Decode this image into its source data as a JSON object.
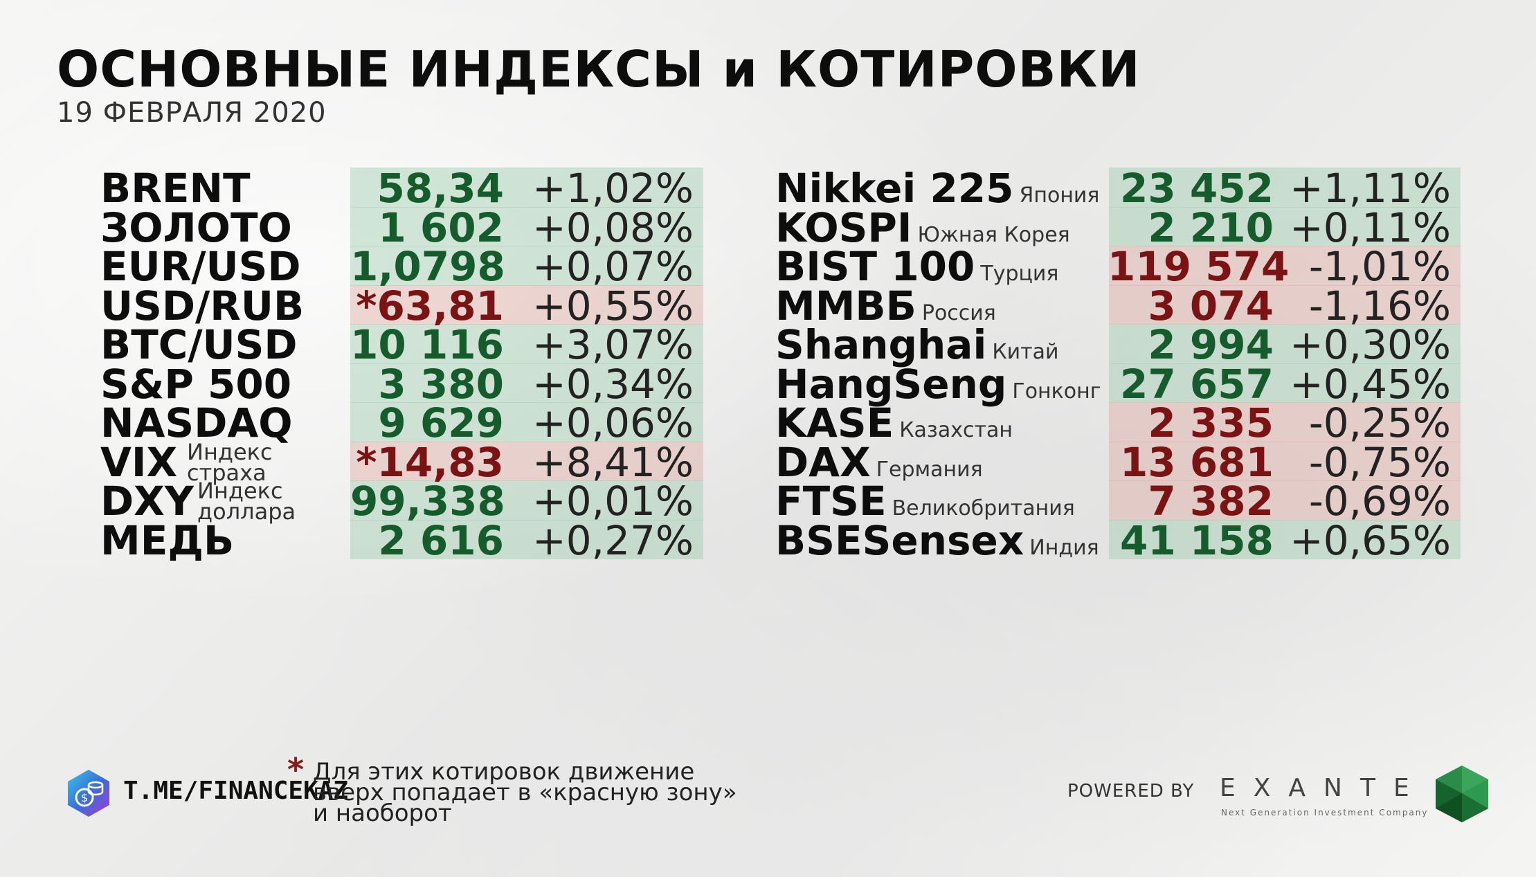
{
  "header": {
    "title": "ОСНОВНЫЕ ИНДЕКСЫ и КОТИРОВКИ",
    "date": "19 ФЕВРАЛЯ 2020"
  },
  "colors": {
    "green_zone": "#a0cdaf",
    "red_zone": "#e1aaa5",
    "green_text": "#155b2c",
    "red_text": "#7a1414"
  },
  "left_table": [
    {
      "name": "BRENT",
      "note": "",
      "value": "58,34",
      "change": "+1,02%",
      "zone": "green"
    },
    {
      "name": "ЗОЛОТО",
      "note": "",
      "value": "1 602",
      "change": "+0,08%",
      "zone": "green"
    },
    {
      "name": "EUR/USD",
      "note": "",
      "value": "1,0798",
      "change": "+0,07%",
      "zone": "green"
    },
    {
      "name": "USD/RUB",
      "note": "",
      "value": "*63,81",
      "change": "+0,55%",
      "zone": "red"
    },
    {
      "name": "BTC/USD",
      "note": "",
      "value": "10 116",
      "change": "+3,07%",
      "zone": "green"
    },
    {
      "name": "S&P 500",
      "note": "",
      "value": "3 380",
      "change": "+0,34%",
      "zone": "green"
    },
    {
      "name": "NASDAQ",
      "note": "",
      "value": "9 629",
      "change": "+0,06%",
      "zone": "green"
    },
    {
      "name": "VIX",
      "note1": "Индекс",
      "note2": "страха",
      "value": "*14,83",
      "change": "+8,41%",
      "zone": "red"
    },
    {
      "name": "DXY",
      "note1": "Индекс",
      "note2": "доллара",
      "value": "99,338",
      "change": "+0,01%",
      "zone": "green"
    },
    {
      "name": "МЕДЬ",
      "note": "",
      "value": "2 616",
      "change": "+0,27%",
      "zone": "green"
    }
  ],
  "right_table": [
    {
      "name": "Nikkei 225",
      "note": "Япония",
      "value": "23 452",
      "change": "+1,11%",
      "zone": "green"
    },
    {
      "name": "KOSPI",
      "note": "Южная Корея",
      "value": "2 210",
      "change": "+0,11%",
      "zone": "green"
    },
    {
      "name": "BIST 100",
      "note": "Турция",
      "value": "119 574",
      "change": "-1,01%",
      "zone": "red"
    },
    {
      "name": "ММВБ",
      "note": "Россия",
      "value": "3 074",
      "change": "-1,16%",
      "zone": "red"
    },
    {
      "name": "Shanghai",
      "note": "Китай",
      "value": "2 994",
      "change": "+0,30%",
      "zone": "green"
    },
    {
      "name": "HangSeng",
      "note": "Гонконг",
      "value": "27 657",
      "change": "+0,45%",
      "zone": "green"
    },
    {
      "name": "KASE",
      "note": "Казахстан",
      "value": "2 335",
      "change": "-0,25%",
      "zone": "red"
    },
    {
      "name": "DAX",
      "note": "Германия",
      "value": "13 681",
      "change": "-0,75%",
      "zone": "red"
    },
    {
      "name": "FTSE",
      "note": "Великобритания",
      "value": "7 382",
      "change": "-0,69%",
      "zone": "red"
    },
    {
      "name": "BSESensex",
      "note": "Индия",
      "value": "41 158",
      "change": "+0,65%",
      "zone": "green"
    }
  ],
  "footer": {
    "telegram": "T.ME/FINANCEKAZ",
    "footnote_star": "*",
    "footnote_lines": [
      "Для этих котировок движение",
      "вверх попадает в «красную зону»",
      "и наоборот"
    ],
    "powered_by": "POWERED BY",
    "brand": "EXANTE",
    "brand_tagline": "Next Generation Investment Company",
    "telegram_icon": "telegram-logo-icon",
    "brand_icon": "emerald-logo-icon"
  }
}
